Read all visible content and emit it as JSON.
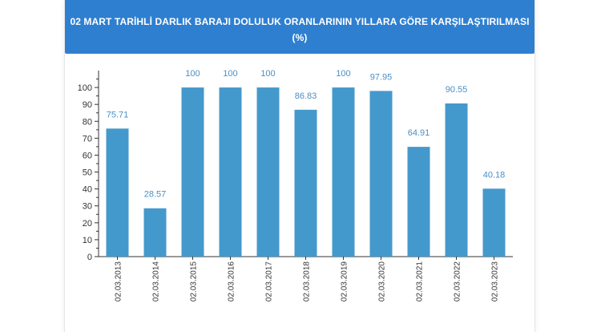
{
  "colors": {
    "header": "#2f7fd0",
    "bar": "#4499cc",
    "label": "#4a8fc4"
  },
  "chart_data": {
    "type": "bar",
    "title_line1": "02 MART TARİHLİ DARLIK BARAJI DOLULUK ORANLARININ YILLARA GÖRE KARŞILAŞTIRILMASI",
    "title_line2": "(%)",
    "categories": [
      "02.03.2013",
      "02.03.2014",
      "02.03.2015",
      "02.03.2016",
      "02.03.2017",
      "02.03.2018",
      "02.03.2019",
      "02.03.2020",
      "02.03.2021",
      "02.03.2022",
      "02.03.2023"
    ],
    "values": [
      75.71,
      28.57,
      100,
      100,
      100,
      86.83,
      100,
      97.95,
      64.91,
      90.55,
      40.18
    ],
    "value_labels": [
      "75.71",
      "28.57",
      "100",
      "100",
      "100",
      "86.83",
      "100",
      "97.95",
      "64.91",
      "90.55",
      "40.18"
    ],
    "ylim": [
      0,
      110
    ],
    "yticks": [
      0,
      10,
      20,
      30,
      40,
      50,
      60,
      70,
      80,
      90,
      100
    ],
    "grid": false,
    "legend": "none"
  }
}
